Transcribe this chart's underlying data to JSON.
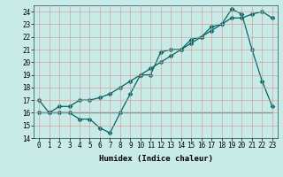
{
  "title": "",
  "xlabel": "Humidex (Indice chaleur)",
  "ylabel": "",
  "bg_color": "#c8ebe8",
  "line_color": "#006666",
  "grid_color": "#d4a0a0",
  "xlim": [
    -0.5,
    23.5
  ],
  "ylim": [
    14,
    24.5
  ],
  "yticks": [
    14,
    15,
    16,
    17,
    18,
    19,
    20,
    21,
    22,
    23,
    24
  ],
  "xticks": [
    0,
    1,
    2,
    3,
    4,
    5,
    6,
    7,
    8,
    9,
    10,
    11,
    12,
    13,
    14,
    15,
    16,
    17,
    18,
    19,
    20,
    21,
    22,
    23
  ],
  "line1_x": [
    0,
    1,
    2,
    3,
    4,
    5,
    6,
    7,
    8,
    9,
    10,
    11,
    12,
    13,
    14,
    15,
    16,
    17,
    18,
    19,
    20,
    21,
    22,
    23
  ],
  "line1_y": [
    17,
    16,
    16,
    16,
    15.5,
    15.5,
    14.8,
    14.4,
    16,
    17.5,
    19,
    19,
    20.8,
    21,
    21,
    21.8,
    22,
    22.8,
    23,
    24.2,
    23.8,
    21,
    18.5,
    16.5
  ],
  "line2_x": [
    0,
    1,
    2,
    3,
    4,
    5,
    6,
    7,
    8,
    9,
    10,
    11,
    12,
    13,
    14,
    15,
    16,
    17,
    18,
    19,
    20,
    21,
    22,
    23
  ],
  "line2_y": [
    16,
    16,
    16,
    16,
    16,
    16,
    16,
    16,
    16,
    16,
    16,
    16,
    16,
    16,
    16,
    16,
    16,
    16,
    16,
    16,
    16,
    16,
    16,
    16
  ],
  "line3_x": [
    0,
    1,
    2,
    3,
    4,
    5,
    6,
    7,
    8,
    9,
    10,
    11,
    12,
    13,
    14,
    15,
    16,
    17,
    18,
    19,
    20,
    21,
    22,
    23
  ],
  "line3_y": [
    16,
    16,
    16.5,
    16.5,
    17,
    17,
    17.2,
    17.5,
    18,
    18.5,
    19,
    19.5,
    20,
    20.5,
    21,
    21.5,
    22,
    22.5,
    23,
    23.5,
    23.5,
    23.8,
    24,
    23.5
  ],
  "marker": "D",
  "markersize1": 2.5,
  "markersize3": 2.5,
  "linewidth": 0.9,
  "tick_fontsize": 5.5,
  "xlabel_fontsize": 6.5
}
